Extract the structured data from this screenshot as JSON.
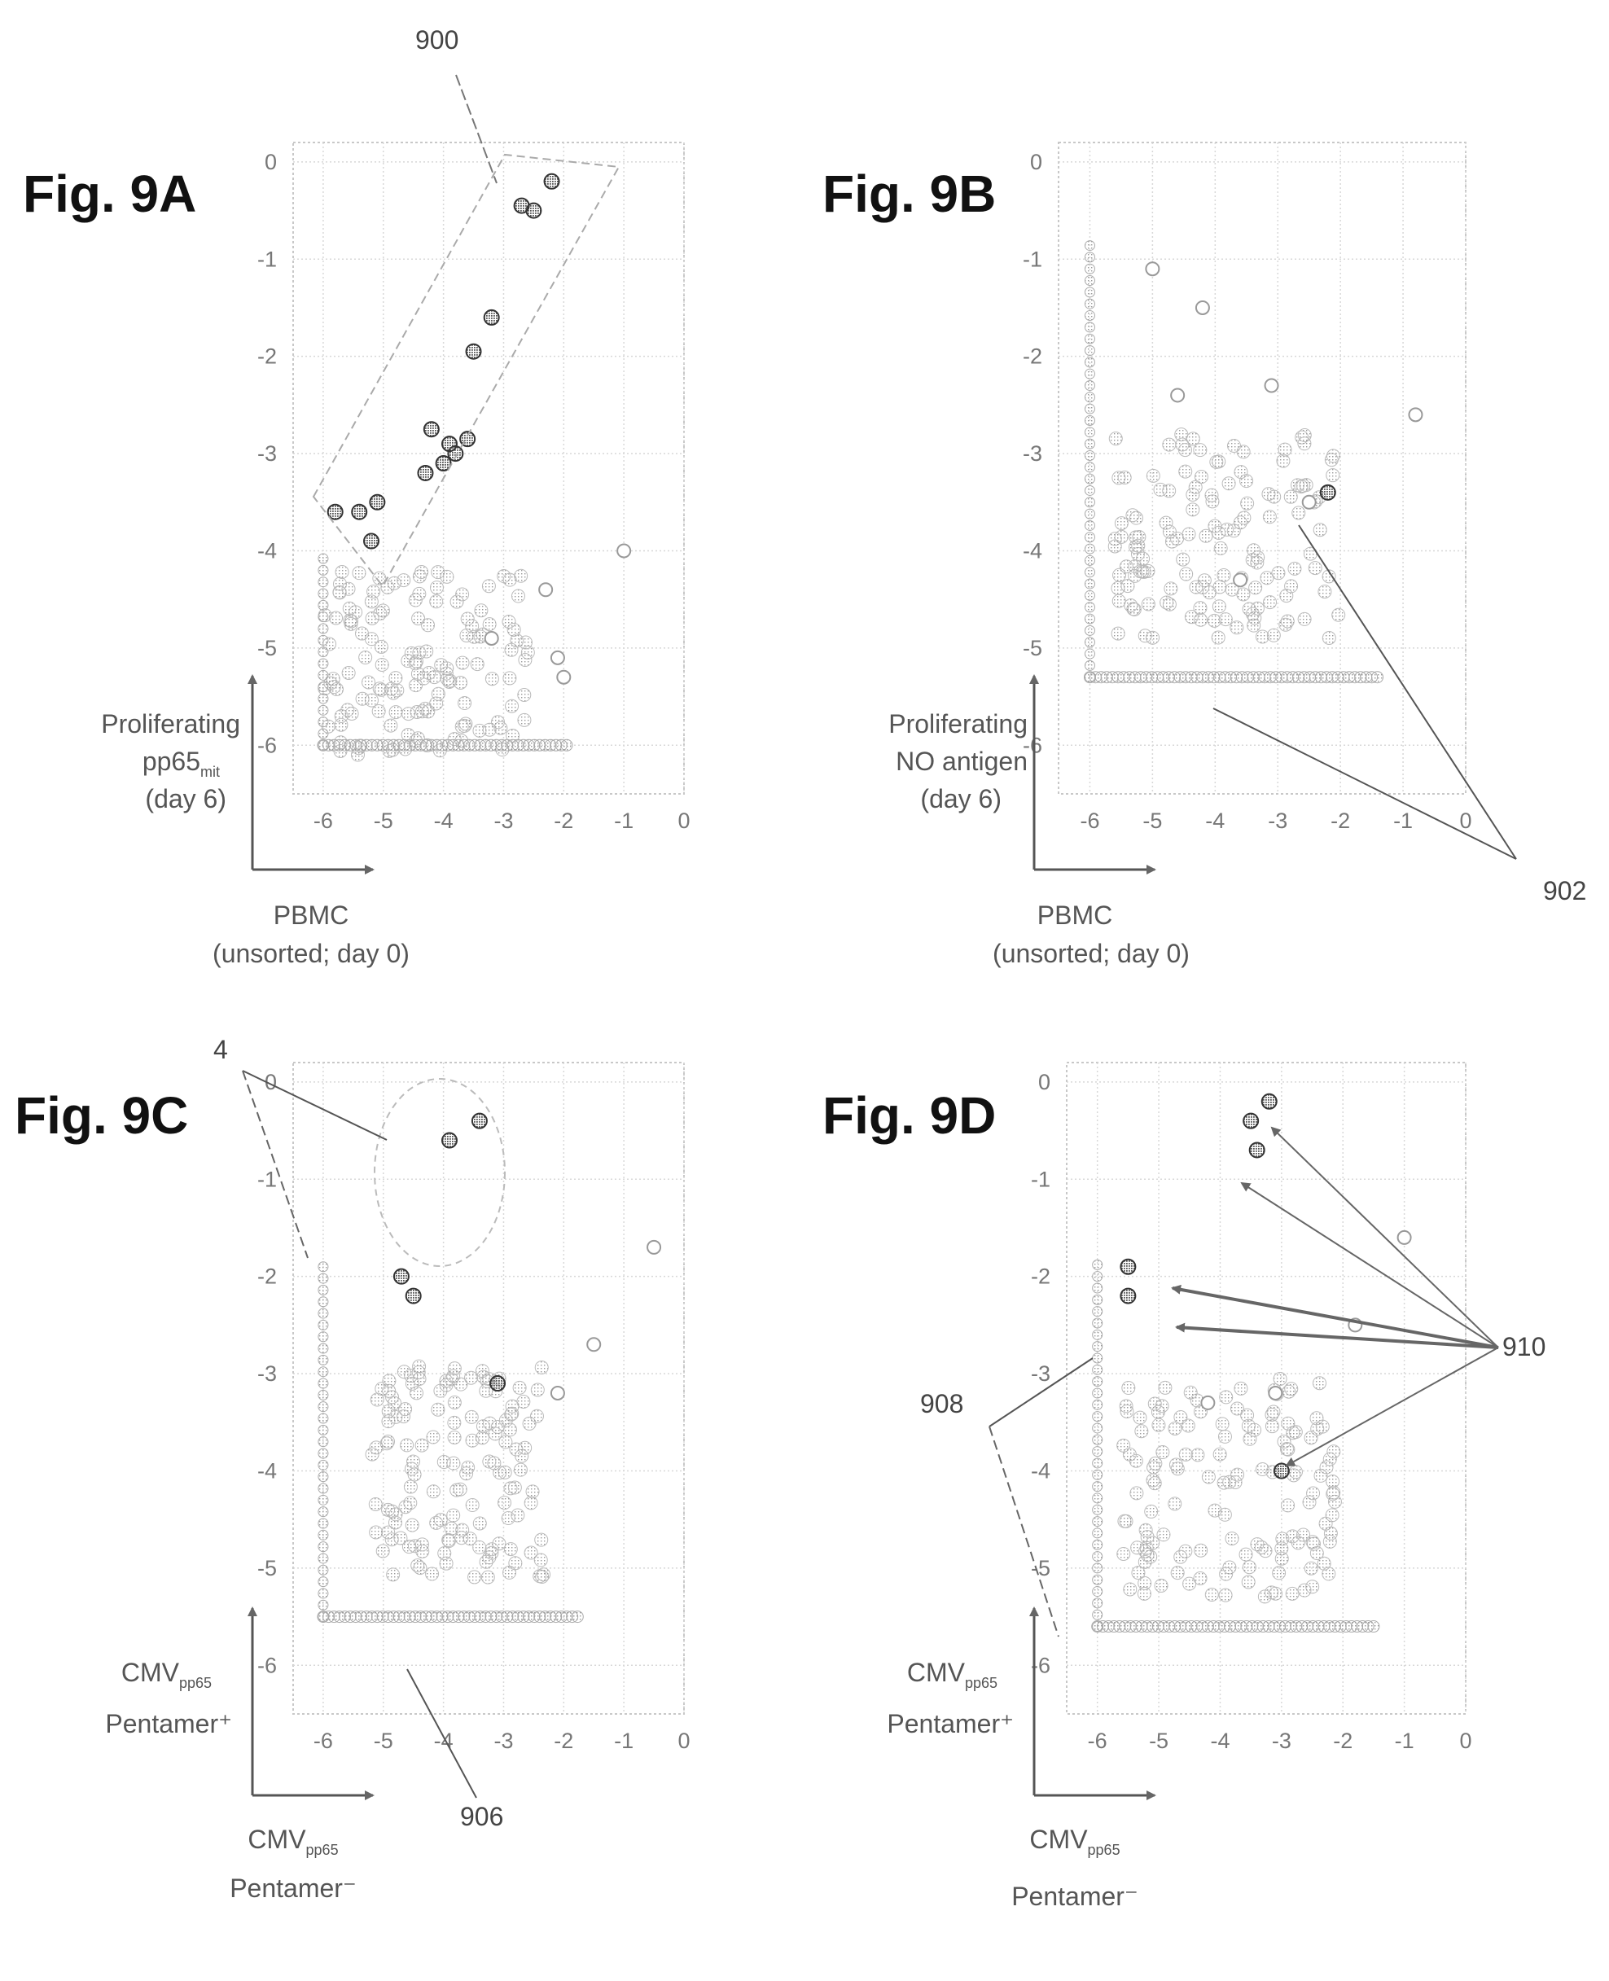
{
  "panels": [
    {
      "fig_label": "Fig. 9A",
      "ylabel": [
        "Proliferating",
        "pp65",
        "(day 6)"
      ],
      "ylabel_sub": "mit",
      "xlabel": [
        "PBMC",
        "(unsorted; day 0)"
      ],
      "xticks": [
        "-6",
        "-5",
        "-4",
        "-3",
        "-2",
        "-1",
        "0"
      ],
      "yticks": [
        "0",
        "-1",
        "-2",
        "-3",
        "-4",
        "-5",
        "-6"
      ],
      "refs": [
        "900"
      ]
    },
    {
      "fig_label": "Fig. 9B",
      "ylabel": [
        "Proliferating",
        "NO antigen",
        "(day 6)"
      ],
      "xlabel": [
        "PBMC",
        "(unsorted; day 0)"
      ],
      "xticks": [
        "-6",
        "-5",
        "-4",
        "-3",
        "-2",
        "-1",
        "0"
      ],
      "yticks": [
        "0",
        "-1",
        "-2",
        "-3",
        "-4",
        "-5",
        "-6"
      ],
      "refs": [
        "902"
      ]
    },
    {
      "fig_label": "Fig. 9C",
      "ylabel": [
        "CMV",
        "Pentamer⁺"
      ],
      "ylabel_sub": "pp65",
      "xlabel": [
        "CMV",
        "Pentamer⁻"
      ],
      "xlabel_sub": "pp65",
      "xticks": [
        "-6",
        "-5",
        "-4",
        "-3",
        "-2",
        "-1",
        "0"
      ],
      "yticks": [
        "0",
        "-1",
        "-2",
        "-3",
        "-4",
        "-5",
        "-6"
      ],
      "refs": [
        "4",
        "906"
      ]
    },
    {
      "fig_label": "Fig. 9D",
      "ylabel": [
        "CMV",
        "Pentamer⁺"
      ],
      "ylabel_sub": "pp65",
      "xlabel": [
        "CMV",
        "Pentamer⁻"
      ],
      "xlabel_sub": "pp65",
      "xticks": [
        "-6",
        "-5",
        "-4",
        "-3",
        "-2",
        "-1",
        "0"
      ],
      "yticks": [
        "0",
        "-1",
        "-2",
        "-3",
        "-4",
        "-5",
        "-6"
      ],
      "refs": [
        "908",
        "910"
      ]
    }
  ],
  "chart_data": [
    {
      "type": "scatter",
      "title": "Fig. 9A",
      "xlabel": "PBMC (unsorted; day 0)",
      "ylabel": "Proliferating pp65mit (day 6)",
      "xlim": [
        -6.5,
        0
      ],
      "ylim": [
        -6.5,
        0.2
      ],
      "highlighted": {
        "x": [
          -2.2,
          -2.5,
          -2.7,
          -3.2,
          -3.5,
          -3.6,
          -3.8,
          -3.9,
          -4.0,
          -4.2,
          -4.3,
          -5.1,
          -5.2,
          -5.4,
          -5.8
        ],
        "y": [
          -0.2,
          -0.5,
          -0.45,
          -1.6,
          -1.95,
          -2.85,
          -3.0,
          -2.9,
          -3.1,
          -2.75,
          -3.2,
          -3.5,
          -3.9,
          -3.6,
          -3.6
        ]
      },
      "other": {
        "x": [
          -1.0,
          -2.0,
          -2.3,
          -3.2,
          -2.1
        ],
        "y": [
          -4.0,
          -5.3,
          -4.4,
          -4.9,
          -5.1
        ]
      },
      "floor_y": -6.0,
      "grid": true
    },
    {
      "type": "scatter",
      "title": "Fig. 9B",
      "xlabel": "PBMC (unsorted; day 0)",
      "ylabel": "Proliferating NO antigen (day 6)",
      "xlim": [
        -6.5,
        0
      ],
      "ylim": [
        -6.5,
        0.2
      ],
      "highlighted": {
        "x": [
          -2.2
        ],
        "y": [
          -3.4
        ]
      },
      "other": {
        "x": [
          -0.8,
          -4.2,
          -3.1,
          -4.6,
          -2.5,
          -5.0,
          -3.6
        ],
        "y": [
          -2.6,
          -1.5,
          -2.3,
          -2.4,
          -3.5,
          -1.1,
          -4.3
        ]
      },
      "floor_y": -5.3,
      "grid": true
    },
    {
      "type": "scatter",
      "title": "Fig. 9C",
      "xlabel": "CMVpp65 Pentamer⁻",
      "ylabel": "CMVpp65 Pentamer⁺",
      "xlim": [
        -6.5,
        0
      ],
      "ylim": [
        -6.5,
        0.2
      ],
      "highlighted": {
        "x": [
          -3.9,
          -3.4,
          -4.7,
          -4.5,
          -3.1
        ],
        "y": [
          -0.6,
          -0.4,
          -2.0,
          -2.2,
          -3.1
        ]
      },
      "other": {
        "x": [
          -0.5,
          -1.5,
          -2.1
        ],
        "y": [
          -1.7,
          -2.7,
          -3.2
        ]
      },
      "floor_y": -5.5,
      "grid": true
    },
    {
      "type": "scatter",
      "title": "Fig. 9D",
      "xlabel": "CMVpp65 Pentamer⁻",
      "ylabel": "CMVpp65 Pentamer⁺",
      "xlim": [
        -6.5,
        0
      ],
      "ylim": [
        -6.5,
        0.2
      ],
      "highlighted": {
        "x": [
          -3.5,
          -3.2,
          -3.4,
          -5.5,
          -5.5,
          -3.0
        ],
        "y": [
          -0.4,
          -0.2,
          -0.7,
          -1.9,
          -2.2,
          -4.0
        ]
      },
      "other": {
        "x": [
          -1.0,
          -1.8,
          -3.1,
          -4.2
        ],
        "y": [
          -1.6,
          -2.5,
          -3.2,
          -3.3
        ]
      },
      "floor_y": -5.6,
      "grid": true
    }
  ]
}
